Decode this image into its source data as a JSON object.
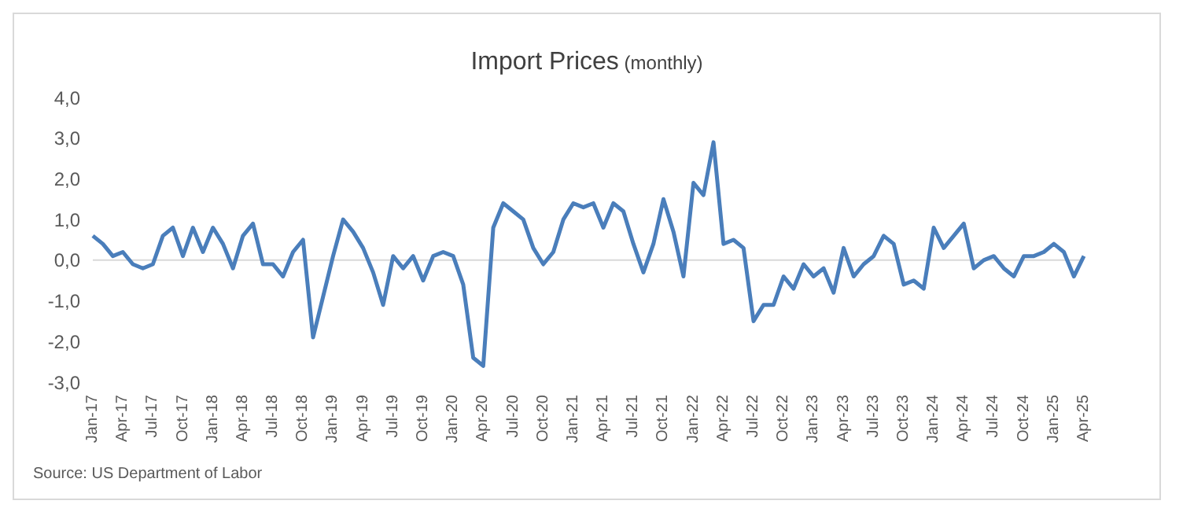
{
  "chart_data": {
    "type": "line",
    "title": "Import Prices",
    "subtitle": "(monthly)",
    "annotations": [
      "Source: US Department of Labor"
    ],
    "categories": [
      "Jan-17",
      null,
      null,
      "Apr-17",
      null,
      null,
      "Jul-17",
      null,
      null,
      "Oct-17",
      null,
      null,
      "Jan-18",
      null,
      null,
      "Apr-18",
      null,
      null,
      "Jul-18",
      null,
      null,
      "Oct-18",
      null,
      null,
      "Jan-19",
      null,
      null,
      "Apr-19",
      null,
      null,
      "Jul-19",
      null,
      null,
      "Oct-19",
      null,
      null,
      "Jan-20",
      null,
      null,
      "Apr-20",
      null,
      null,
      "Jul-20",
      null,
      null,
      "Oct-20",
      null,
      null,
      "Jan-21",
      null,
      null,
      "Apr-21",
      null,
      null,
      "Jul-21",
      null,
      null,
      "Oct-21",
      null,
      null,
      "Jan-22",
      null,
      null,
      "Apr-22",
      null,
      null,
      "Jul-22",
      null,
      null,
      "Oct-22",
      null,
      null,
      "Jan-23",
      null,
      null,
      "Apr-23",
      null,
      null,
      "Jul-23",
      null,
      null,
      "Oct-23",
      null,
      null,
      "Jan-24",
      null,
      null,
      "Apr-24",
      null,
      null,
      "Jul-24",
      null,
      null,
      "Oct-24",
      null,
      null,
      "Jan-25",
      null,
      null,
      "Apr-25"
    ],
    "series": [
      {
        "color": "#4a7ebb",
        "values": [
          0.6,
          0.4,
          0.1,
          0.2,
          -0.1,
          -0.2,
          -0.1,
          0.6,
          0.8,
          0.1,
          0.8,
          0.2,
          0.8,
          0.4,
          -0.2,
          0.6,
          0.9,
          -0.1,
          -0.1,
          -0.4,
          0.2,
          0.5,
          -1.9,
          -0.9,
          0.1,
          1.0,
          0.7,
          0.3,
          -0.3,
          -1.1,
          0.1,
          -0.2,
          0.1,
          -0.5,
          0.1,
          0.2,
          0.1,
          -0.6,
          -2.4,
          -2.6,
          0.8,
          1.4,
          1.2,
          1.0,
          0.3,
          -0.1,
          0.2,
          1.0,
          1.4,
          1.3,
          1.4,
          0.8,
          1.4,
          1.2,
          0.4,
          -0.3,
          0.4,
          1.5,
          0.7,
          -0.4,
          1.9,
          1.6,
          2.9,
          0.4,
          0.5,
          0.3,
          -1.5,
          -1.1,
          -1.1,
          -0.4,
          -0.7,
          -0.1,
          -0.4,
          -0.2,
          -0.8,
          0.3,
          -0.4,
          -0.1,
          0.1,
          0.6,
          0.4,
          -0.6,
          -0.5,
          -0.7,
          0.8,
          0.3,
          0.6,
          0.9,
          -0.2,
          0.0,
          0.1,
          -0.2,
          -0.4,
          0.1,
          0.1,
          0.2,
          0.4,
          0.2,
          -0.4,
          0.1
        ]
      }
    ],
    "ylim": [
      -3,
      4
    ],
    "yticks": [
      {
        "value": -3,
        "label": "-3,0"
      },
      {
        "value": -2,
        "label": "-2,0"
      },
      {
        "value": -1,
        "label": "-1,0"
      },
      {
        "value": 0,
        "label": "0,0"
      },
      {
        "value": 1,
        "label": "1,0"
      },
      {
        "value": 2,
        "label": "2,0"
      },
      {
        "value": 3,
        "label": "3,0"
      },
      {
        "value": 4,
        "label": "4,0"
      }
    ],
    "marker": "none",
    "line_style": "solid"
  }
}
